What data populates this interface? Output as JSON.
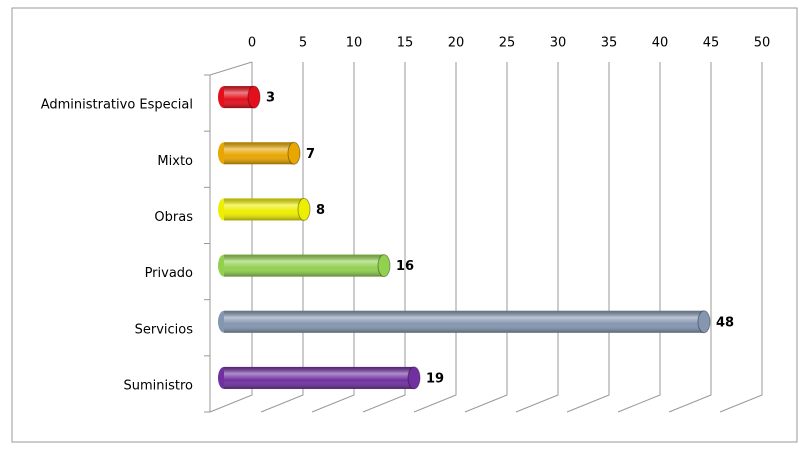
{
  "chart_data": {
    "type": "bar3d",
    "categories": [
      "Administrativo Especial",
      "Mixto",
      "Obras",
      "Privado",
      "Servicios",
      "Suministro"
    ],
    "values": [
      3,
      7,
      8,
      16,
      48,
      19
    ],
    "colors": [
      "#e3101c",
      "#e8a600",
      "#eeee00",
      "#92d050",
      "#8496b0",
      "#7030a0"
    ],
    "xlim": [
      0,
      50
    ],
    "xticks": [
      0,
      5,
      10,
      15,
      20,
      25,
      30,
      35,
      40,
      45,
      50
    ],
    "grid": true
  }
}
